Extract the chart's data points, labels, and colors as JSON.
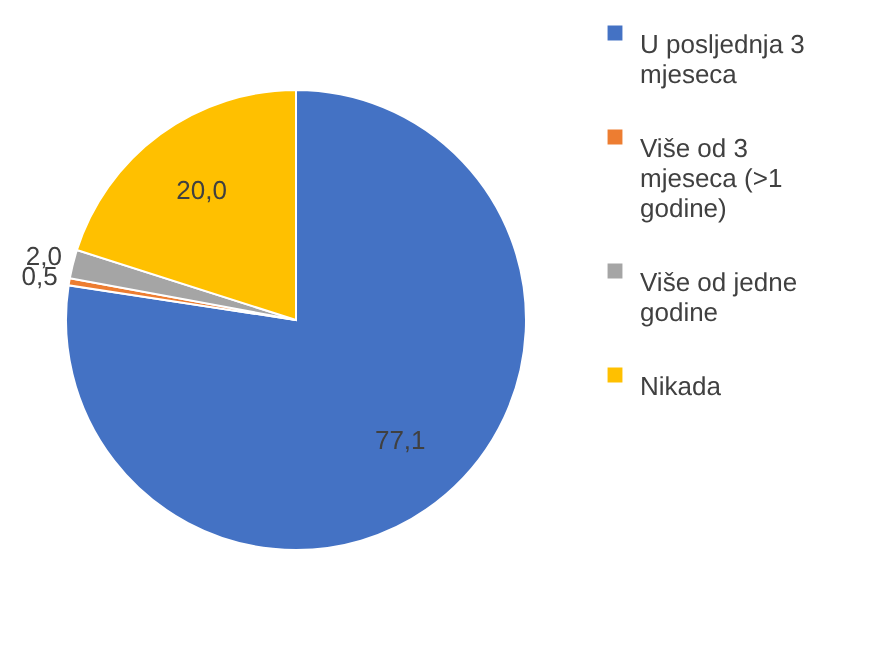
{
  "chart_data": {
    "type": "pie",
    "categories": [
      "U posljednja 3 mjeseca",
      "Više od 3 mjeseca (>1 godine)",
      "Više od jedne godine",
      "Nikada"
    ],
    "values": [
      77.1,
      0.5,
      2.0,
      20.0
    ],
    "colors": [
      "#4472c4",
      "#ed7d31",
      "#a5a5a5",
      "#ffc000"
    ],
    "value_labels": [
      "77,1",
      "0,5",
      "2,0",
      "20,0"
    ],
    "legend": "right"
  }
}
